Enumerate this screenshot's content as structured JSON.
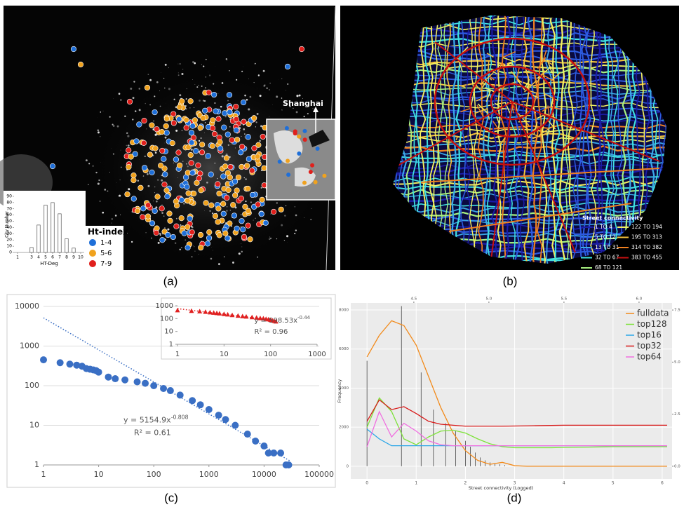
{
  "captions": [
    "(a)",
    "(b)",
    "(c)",
    "(d)"
  ],
  "map_a": {
    "label": "Shanghai",
    "legend_title": "Ht-index",
    "legend": [
      {
        "label": "1-4",
        "color": "#1f6fd8"
      },
      {
        "label": "5-6",
        "color": "#f0a21e"
      },
      {
        "label": "7-9",
        "color": "#e0201c"
      }
    ]
  },
  "map_b": {
    "legend_title": "Street connectivity",
    "legend": [
      {
        "label": "1 TO 4",
        "color": "#1c1ca8"
      },
      {
        "label": "5 TO 12",
        "color": "#2d5be0"
      },
      {
        "label": "13 TO 31",
        "color": "#3aa8e8"
      },
      {
        "label": "32 TO 67",
        "color": "#3fe0e0"
      },
      {
        "label": "68 TO 121",
        "color": "#a6f080"
      },
      {
        "label": "122 TO 194",
        "color": "#f2f060"
      },
      {
        "label": "195 TO 313",
        "color": "#f5c23c"
      },
      {
        "label": "314 TO 382",
        "color": "#f08020"
      },
      {
        "label": "383 TO 455",
        "color": "#c81010"
      }
    ]
  },
  "chart_data": [
    {
      "type": "bar",
      "xlabel": "HT-Deg",
      "ylabel": "City Number",
      "x": [
        3,
        4,
        5,
        6,
        7,
        8,
        9
      ],
      "values": [
        8,
        44,
        76,
        80,
        62,
        22,
        7
      ],
      "color": "#ffffff",
      "edgecolor": "#555555",
      "xlim": [
        0.5,
        10.5
      ],
      "xticks": [
        1,
        3,
        4,
        5,
        6,
        7,
        8,
        9,
        10
      ],
      "ylim": [
        0,
        90
      ],
      "yticks": [
        0,
        10,
        20,
        30,
        40,
        50,
        60,
        70,
        80,
        90
      ]
    },
    {
      "type": "scatter",
      "log": true,
      "grid": true,
      "marker": "circle",
      "color": "#3a6fc4",
      "x": [
        1,
        2,
        3,
        4,
        5,
        6,
        7,
        8,
        9,
        10,
        15,
        20,
        30,
        50,
        70,
        100,
        150,
        200,
        300,
        500,
        700,
        1000,
        1500,
        2000,
        3000,
        5000,
        7000,
        10000,
        12000,
        15000,
        20000,
        25000,
        28000
      ],
      "values": [
        450,
        380,
        350,
        330,
        310,
        270,
        260,
        250,
        240,
        220,
        165,
        150,
        140,
        125,
        115,
        100,
        85,
        75,
        58,
        42,
        33,
        25,
        18,
        14,
        10,
        6,
        4,
        3,
        2,
        2,
        2,
        1,
        1
      ],
      "xlim": [
        1,
        100000
      ],
      "xticks": [
        1,
        10,
        100,
        1000,
        10000,
        100000
      ],
      "ylim": [
        1,
        10000
      ],
      "yticks": [
        1,
        10,
        100,
        1000,
        10000
      ],
      "trend": {
        "coefficient": 5154.9,
        "exponent": -0.808
      },
      "equation": "y = 5154.9x",
      "equation_exponent": "-0.808",
      "r2": "R² = 0.61"
    },
    {
      "type": "scatter",
      "log": true,
      "grid": false,
      "marker": "triangle",
      "color": "#e02020",
      "x": [
        1,
        2,
        3,
        4,
        5,
        6,
        7,
        8,
        10,
        12,
        15,
        20,
        25,
        30,
        40,
        50,
        60,
        70,
        80,
        90,
        100,
        110,
        120,
        130
      ],
      "values": [
        450,
        400,
        370,
        340,
        310,
        290,
        270,
        255,
        230,
        210,
        190,
        170,
        155,
        145,
        130,
        120,
        110,
        105,
        95,
        88,
        80,
        72,
        66,
        60
      ],
      "xlim": [
        1,
        1000
      ],
      "xticks": [
        1,
        10,
        100,
        1000
      ],
      "ylim": [
        1,
        1000
      ],
      "yticks": [
        1,
        10,
        100,
        1000
      ],
      "trend": {
        "coefficient": 598.53,
        "exponent": -0.44
      },
      "equation": "y = 598.53x",
      "equation_exponent": "-0.44",
      "r2": "R² = 0.96"
    },
    {
      "type": "line",
      "xlabel": "Street connectivity (Logged)",
      "ylabel": "Frequency",
      "x": [
        0,
        0.25,
        0.5,
        0.75,
        1,
        1.25,
        1.5,
        1.75,
        2,
        2.25,
        2.5,
        2.75,
        3,
        3.25,
        3.5,
        3.75,
        4,
        4.25,
        4.5,
        4.75,
        5,
        5.25,
        5.5,
        5.75,
        6.1
      ],
      "series": [
        {
          "name": "fulldata",
          "color": "#f28a1a",
          "values": [
            5600,
            6700,
            7450,
            7200,
            6200,
            4600,
            3000,
            1700,
            800,
            300,
            100,
            200,
            30,
            0,
            0,
            0,
            0,
            0,
            0,
            0,
            0,
            0,
            0,
            0,
            0
          ]
        },
        {
          "name": "top128",
          "color": "#7ee23a",
          "values": [
            2000,
            3500,
            2800,
            1400,
            1100,
            1500,
            1800,
            1850,
            1700,
            1400,
            1150,
            1000,
            950,
            950,
            950,
            950,
            960,
            970,
            980,
            990,
            1000,
            1000,
            1000,
            1000,
            1000
          ]
        },
        {
          "name": "top16",
          "color": "#2aa6e8",
          "values": [
            1900,
            1400,
            1050,
            1050,
            1050,
            1050,
            1050,
            1050,
            1050,
            1050,
            1050,
            1050,
            1050,
            1050,
            1050,
            1050,
            1050,
            1050,
            1050,
            1050,
            1050,
            1050,
            1050,
            1050,
            1050
          ]
        },
        {
          "name": "top32",
          "color": "#d81818",
          "values": [
            2300,
            3400,
            2900,
            3050,
            2700,
            2300,
            2150,
            2100,
            2050,
            2050,
            2050,
            2050,
            2060,
            2070,
            2080,
            2090,
            2100,
            2100,
            2100,
            2100,
            2100,
            2100,
            2100,
            2100,
            2100
          ]
        },
        {
          "name": "top64",
          "color": "#f06ee0",
          "values": [
            1000,
            2800,
            1500,
            2200,
            1800,
            1300,
            1100,
            1050,
            1050,
            1050,
            1050,
            1050,
            1050,
            1050,
            1050,
            1050,
            1050,
            1050,
            1050,
            1050,
            1050,
            1050,
            1050,
            1050,
            1050
          ]
        }
      ],
      "spikes": {
        "color": "#444444",
        "x": [
          0,
          0.7,
          1.1,
          1.35,
          1.6,
          1.8,
          2,
          2.1,
          2.2,
          2.3,
          2.4,
          2.5,
          2.6,
          2.7,
          2.8
        ],
        "values": [
          5400,
          8200,
          4800,
          2900,
          2200,
          1800,
          1300,
          1000,
          700,
          450,
          300,
          200,
          150,
          100,
          60
        ]
      },
      "xlim": [
        -0.33,
        6.2
      ],
      "xticks": [
        0,
        1,
        2,
        3,
        4,
        5,
        6
      ],
      "ylim": [
        -650,
        8360
      ],
      "yticks": [
        0,
        2000,
        4000,
        6000,
        8000
      ],
      "x2lim": [
        4.08,
        6.22
      ],
      "x2ticks": [
        4.5,
        {
          "value": 5,
          "label": "5.0"
        },
        5.5,
        {
          "value": 6,
          "label": "6.0"
        }
      ],
      "y2lim": [
        -0.61,
        7.84
      ],
      "y2ticks": [
        {
          "value": 0,
          "label": "0.0"
        },
        2.5,
        {
          "value": 5,
          "label": "5.0"
        },
        7.5
      ]
    }
  ]
}
